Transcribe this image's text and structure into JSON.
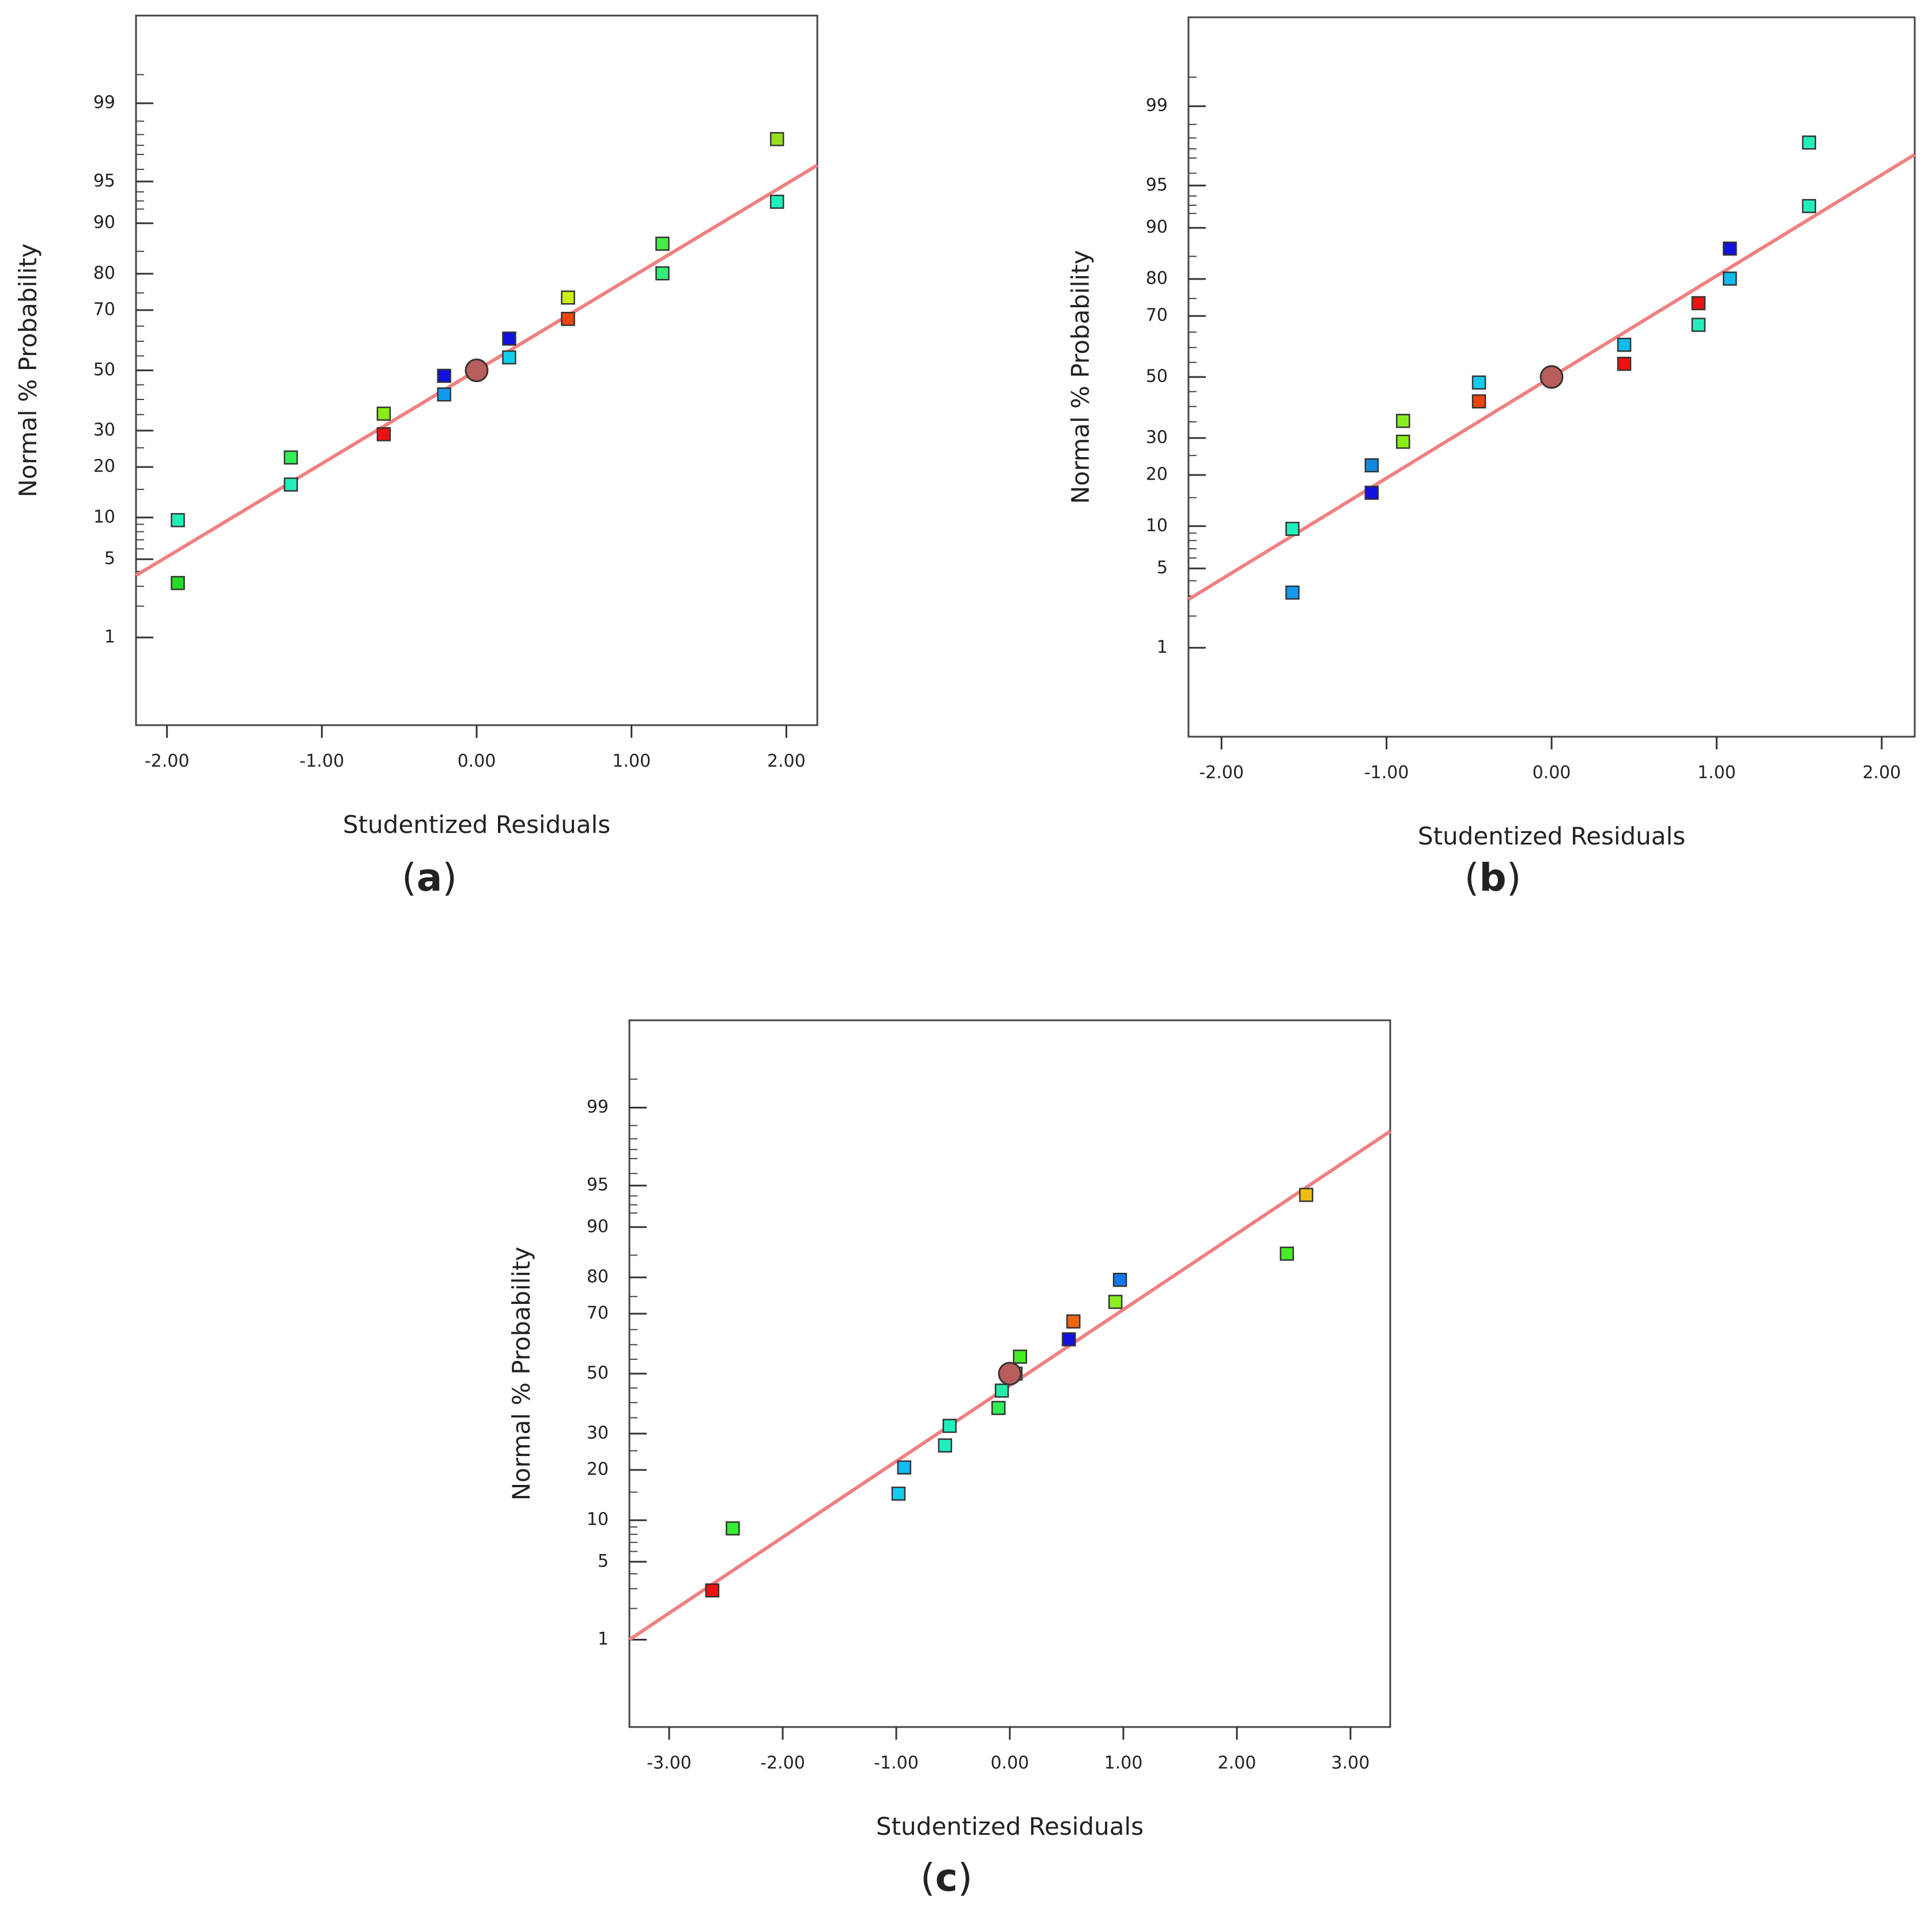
{
  "chart_data": [
    {
      "type": "scatter",
      "panel_label": "a",
      "title": "",
      "xlabel": "Studentized Residuals",
      "ylabel": "Normal % Probability",
      "xlim": [
        -2.2,
        2.2
      ],
      "x_ticks": [
        "-2.00",
        "-1.00",
        "0.00",
        "1.00",
        "2.00"
      ],
      "x_tick_values": [
        -2,
        -1,
        0,
        1,
        2
      ],
      "ylim": [
        0.1,
        99.9
      ],
      "y_ticks": [
        "1",
        "5",
        "10",
        "20",
        "30",
        "50",
        "70",
        "80",
        "90",
        "95",
        "99"
      ],
      "y_tick_values": [
        1,
        5,
        10,
        20,
        30,
        50,
        70,
        80,
        90,
        95,
        99
      ],
      "grid": false,
      "fit_line": {
        "color": "#f08080",
        "x": [
          -2.2,
          2.2
        ],
        "y": [
          3.7,
          96.3
        ]
      },
      "centroid": {
        "x": 0.0,
        "y": 50,
        "color": "#b85c5c"
      },
      "points": [
        {
          "x": -1.93,
          "y": 3.2,
          "color": "#22dd22"
        },
        {
          "x": -1.93,
          "y": 9.6,
          "color": "#22eebb"
        },
        {
          "x": -1.2,
          "y": 16.0,
          "color": "#22eebb"
        },
        {
          "x": -1.2,
          "y": 22.4,
          "color": "#33ee55"
        },
        {
          "x": -0.6,
          "y": 28.9,
          "color": "#ee1111"
        },
        {
          "x": -0.6,
          "y": 35.3,
          "color": "#88ee11"
        },
        {
          "x": -0.21,
          "y": 41.7,
          "color": "#1199ee"
        },
        {
          "x": -0.21,
          "y": 48.1,
          "color": "#1111dd"
        },
        {
          "x": 0.21,
          "y": 54.5,
          "color": "#11ccee"
        },
        {
          "x": 0.21,
          "y": 60.9,
          "color": "#1111dd"
        },
        {
          "x": 0.59,
          "y": 67.3,
          "color": "#ee4411"
        },
        {
          "x": 0.59,
          "y": 73.7,
          "color": "#ccee11"
        },
        {
          "x": 1.2,
          "y": 80.1,
          "color": "#33ee77"
        },
        {
          "x": 1.2,
          "y": 86.5,
          "color": "#44ee44"
        },
        {
          "x": 1.94,
          "y": 92.9,
          "color": "#22eebb"
        },
        {
          "x": 1.94,
          "y": 97.8,
          "color": "#99dd22"
        }
      ]
    },
    {
      "type": "scatter",
      "panel_label": "b",
      "title": "",
      "xlabel": "Studentized Residuals",
      "ylabel": "Normal % Probability",
      "xlim": [
        -2.2,
        2.2
      ],
      "x_ticks": [
        "-2.00",
        "-1.00",
        "0.00",
        "1.00",
        "2.00"
      ],
      "x_tick_values": [
        -2,
        -1,
        0,
        1,
        2
      ],
      "ylim": [
        0.1,
        99.9
      ],
      "y_ticks": [
        "1",
        "5",
        "10",
        "20",
        "30",
        "50",
        "70",
        "80",
        "90",
        "95",
        "99"
      ],
      "y_tick_values": [
        1,
        5,
        10,
        20,
        30,
        50,
        70,
        80,
        90,
        95,
        99
      ],
      "grid": false,
      "fit_line": {
        "color": "#f08080",
        "x": [
          -2.2,
          2.2
        ],
        "y": [
          2.8,
          97.2
        ]
      },
      "centroid": {
        "x": 0.0,
        "y": 50,
        "color": "#b85c5c"
      },
      "points": [
        {
          "x": -1.57,
          "y": 3.2,
          "color": "#1199ee"
        },
        {
          "x": -1.57,
          "y": 9.6,
          "color": "#22eebb"
        },
        {
          "x": -1.09,
          "y": 16.0,
          "color": "#1111dd"
        },
        {
          "x": -1.09,
          "y": 22.4,
          "color": "#1188dd"
        },
        {
          "x": -0.9,
          "y": 28.9,
          "color": "#88ee11"
        },
        {
          "x": -0.9,
          "y": 35.3,
          "color": "#88ee22"
        },
        {
          "x": -0.44,
          "y": 41.7,
          "color": "#ee4411"
        },
        {
          "x": -0.44,
          "y": 48.1,
          "color": "#11ccee"
        },
        {
          "x": 0.44,
          "y": 54.5,
          "color": "#ee1111"
        },
        {
          "x": 0.44,
          "y": 60.9,
          "color": "#11bbee"
        },
        {
          "x": 0.89,
          "y": 67.3,
          "color": "#22eebb"
        },
        {
          "x": 0.89,
          "y": 73.7,
          "color": "#ee1111"
        },
        {
          "x": 1.08,
          "y": 80.1,
          "color": "#11bbee"
        },
        {
          "x": 1.08,
          "y": 86.5,
          "color": "#1111dd"
        },
        {
          "x": 1.56,
          "y": 92.9,
          "color": "#22eebb"
        },
        {
          "x": 1.56,
          "y": 97.8,
          "color": "#22eebb"
        }
      ]
    },
    {
      "type": "scatter",
      "panel_label": "c",
      "title": "",
      "xlabel": "Studentized Residuals",
      "ylabel": "Normal % Probability",
      "xlim": [
        -3.35,
        3.35
      ],
      "x_ticks": [
        "-3.00",
        "-2.00",
        "-1.00",
        "0.00",
        "1.00",
        "2.00",
        "3.00"
      ],
      "x_tick_values": [
        -3,
        -2,
        -1,
        0,
        1,
        2,
        3
      ],
      "ylim": [
        0.1,
        99.9
      ],
      "y_ticks": [
        "1",
        "5",
        "10",
        "20",
        "30",
        "50",
        "70",
        "80",
        "90",
        "95",
        "99"
      ],
      "y_tick_values": [
        1,
        5,
        10,
        20,
        30,
        50,
        70,
        80,
        90,
        95,
        99
      ],
      "grid": false,
      "fit_line": {
        "color": "#f08080",
        "x": [
          -3.35,
          3.35
        ],
        "y": [
          1.0,
          98.3
        ]
      },
      "centroid": {
        "x": 0.0,
        "y": 50,
        "color": "#b85c5c"
      },
      "points": [
        {
          "x": -2.62,
          "y": 2.9,
          "color": "#ee1111"
        },
        {
          "x": -2.44,
          "y": 8.8,
          "color": "#33ee33"
        },
        {
          "x": -0.98,
          "y": 14.7,
          "color": "#11ccee"
        },
        {
          "x": -0.93,
          "y": 20.6,
          "color": "#11bbee"
        },
        {
          "x": -0.57,
          "y": 26.5,
          "color": "#22eebb"
        },
        {
          "x": -0.53,
          "y": 32.4,
          "color": "#22eebb"
        },
        {
          "x": -0.1,
          "y": 38.2,
          "color": "#33ee55"
        },
        {
          "x": -0.07,
          "y": 44.1,
          "color": "#22eeaa"
        },
        {
          "x": 0.05,
          "y": 50.0,
          "color": "#33ee33"
        },
        {
          "x": 0.09,
          "y": 55.9,
          "color": "#44ee22"
        },
        {
          "x": 0.52,
          "y": 61.8,
          "color": "#1111dd"
        },
        {
          "x": 0.56,
          "y": 67.6,
          "color": "#ee6611"
        },
        {
          "x": 0.93,
          "y": 73.5,
          "color": "#88ee22"
        },
        {
          "x": 0.97,
          "y": 79.4,
          "color": "#1177ee"
        },
        {
          "x": 2.44,
          "y": 85.3,
          "color": "#44ee22"
        },
        {
          "x": 2.61,
          "y": 94.1,
          "color": "#eebb11"
        }
      ]
    }
  ]
}
